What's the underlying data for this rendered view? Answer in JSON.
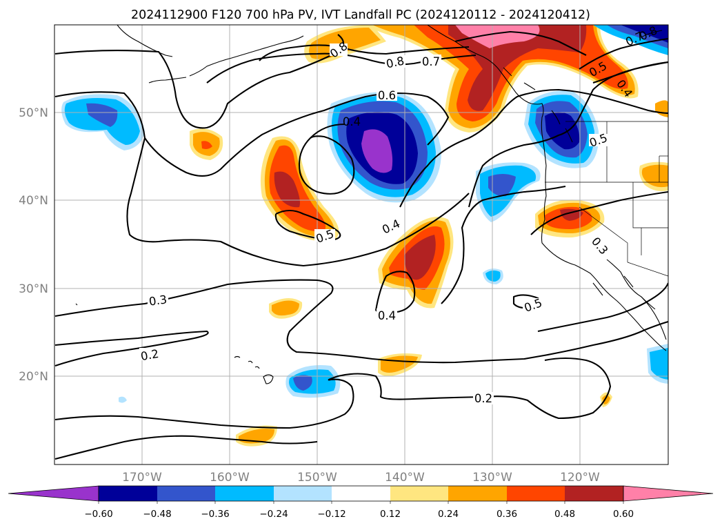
{
  "title": "2024112900 F120 700 hPa PV, IVT Landfall PC (2024120112 - 2024120412)",
  "map": {
    "projection": "PlateCarree",
    "lon_range": [
      -180,
      -110
    ],
    "lat_range": [
      10,
      60
    ],
    "gridlines": true,
    "coastlines": true,
    "lon_ticks": [
      {
        "lon": -170,
        "label": "170°W"
      },
      {
        "lon": -160,
        "label": "160°W"
      },
      {
        "lon": -150,
        "label": "150°W"
      },
      {
        "lon": -140,
        "label": "140°W"
      },
      {
        "lon": -130,
        "label": "130°W"
      },
      {
        "lon": -120,
        "label": "120°W"
      }
    ],
    "lat_ticks": [
      {
        "lat": 20,
        "label": "20°N"
      },
      {
        "lat": 30,
        "label": "30°N"
      },
      {
        "lat": 40,
        "label": "40°N"
      },
      {
        "lat": 50,
        "label": "50°N"
      }
    ]
  },
  "colorbar": {
    "orientation": "horizontal",
    "extend": "both",
    "colors": [
      "#9933cc",
      "#000099",
      "#3355cc",
      "#00bbff",
      "#b3e3ff",
      "#ffffff",
      "#ffe680",
      "#ffa500",
      "#ff4500",
      "#b22222",
      "#ff80a8"
    ],
    "tick_labels": [
      "−0.60",
      "−0.48",
      "−0.36",
      "−0.24",
      "−0.12",
      "0.12",
      "0.24",
      "0.36",
      "0.48",
      "0.60"
    ]
  },
  "contour_labels": [
    {
      "text": "0.8",
      "note": "northwest"
    },
    {
      "text": "0.8",
      "note": "gulf of alaska"
    },
    {
      "text": "0.7",
      "note": "gulf of alaska"
    },
    {
      "text": "0.6",
      "note": "gulf of alaska"
    },
    {
      "text": "0.4",
      "note": "low center"
    },
    {
      "text": "0.5",
      "note": "central pacific"
    },
    {
      "text": "0.4",
      "note": "central pacific"
    },
    {
      "text": "0.3",
      "note": "west pacific"
    },
    {
      "text": "0.2",
      "note": "west pacific"
    },
    {
      "text": "0.4",
      "note": "subtropics"
    },
    {
      "text": "0.5",
      "note": "subtropics east"
    },
    {
      "text": "0.2",
      "note": "south"
    },
    {
      "text": "0.5",
      "note": "pacific northwest"
    },
    {
      "text": "0.4",
      "note": "pacific northwest"
    },
    {
      "text": "0.5",
      "note": "oregon coast"
    },
    {
      "text": "0.3",
      "note": "california"
    },
    {
      "text": "0.7",
      "note": "northeast corner"
    },
    {
      "text": "0.8",
      "note": "northeast corner"
    }
  ]
}
